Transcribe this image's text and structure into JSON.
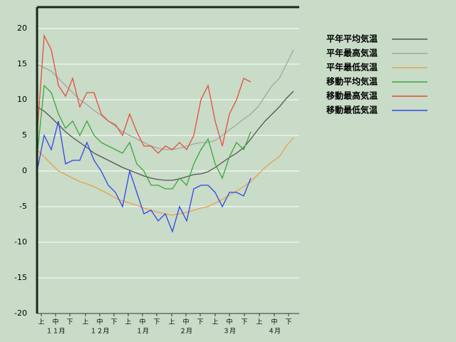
{
  "chart_data": {
    "type": "line",
    "x": [
      0,
      5,
      10,
      15,
      20,
      25,
      30,
      35,
      40,
      45,
      50,
      55,
      60,
      65,
      70,
      75,
      80,
      85,
      90,
      95,
      100,
      105,
      110,
      115,
      120,
      125,
      130,
      135,
      140,
      145,
      150,
      155,
      160,
      165,
      170,
      175,
      180
    ],
    "xlim": [
      0,
      184
    ],
    "xticks": [
      {
        "value": 3,
        "label": "上"
      },
      {
        "value": 13,
        "label": "中"
      },
      {
        "value": 23,
        "label": "下"
      },
      {
        "value": 34,
        "label": "上"
      },
      {
        "value": 44,
        "label": "中"
      },
      {
        "value": 54,
        "label": "下"
      },
      {
        "value": 64,
        "label": "上"
      },
      {
        "value": 74,
        "label": "中"
      },
      {
        "value": 84,
        "label": "下"
      },
      {
        "value": 94.5,
        "label": "上"
      },
      {
        "value": 104.5,
        "label": "中"
      },
      {
        "value": 114.5,
        "label": "下"
      },
      {
        "value": 125,
        "label": "上"
      },
      {
        "value": 135,
        "label": "中"
      },
      {
        "value": 145.5,
        "label": "下"
      },
      {
        "value": 156,
        "label": "上"
      },
      {
        "value": 166.5,
        "label": "中"
      },
      {
        "value": 176.5,
        "label": "下"
      }
    ],
    "month_labels": [
      {
        "value": 13,
        "label": "１１月"
      },
      {
        "value": 44,
        "label": "１２月"
      },
      {
        "value": 74,
        "label": "１月"
      },
      {
        "value": 104.5,
        "label": "２月"
      },
      {
        "value": 135,
        "label": "３月"
      },
      {
        "value": 166.5,
        "label": "４月"
      }
    ],
    "ylim": [
      -20,
      20
    ],
    "yticks": [
      -20,
      -15,
      -10,
      -5,
      0,
      5,
      10,
      15,
      20
    ],
    "grid": true,
    "series": [
      {
        "name": "平年平均気温",
        "color": "#555555",
        "values": [
          9,
          8.4,
          7.5,
          6.5,
          5.5,
          4.7,
          4,
          3.3,
          2.5,
          2,
          1.5,
          1,
          0.5,
          0.1,
          -0.3,
          -0.7,
          -1,
          -1.2,
          -1.3,
          -1.3,
          -1.1,
          -0.8,
          -0.5,
          -0.4,
          -0.1,
          0.5,
          1.2,
          1.9,
          2.5,
          3.3,
          4.5,
          5.8,
          7,
          8,
          9,
          10.2,
          11.2
        ]
      },
      {
        "name": "平年最高気温",
        "color": "#a0a8a0",
        "values": [
          15,
          14.5,
          14,
          13,
          12,
          11,
          10,
          9.3,
          8.5,
          7.8,
          7,
          6.3,
          5.5,
          5,
          4.5,
          4,
          3.5,
          3.2,
          3,
          3,
          3.2,
          3.5,
          3.8,
          4,
          4,
          4.3,
          5,
          5.8,
          6.5,
          7.3,
          8,
          9,
          10.5,
          12,
          13,
          15,
          17
        ]
      },
      {
        "name": "平年最低気温",
        "color": "#e8a050",
        "values": [
          3,
          2,
          1,
          0,
          -0.5,
          -1,
          -1.5,
          -1.8,
          -2.2,
          -2.7,
          -3.2,
          -3.8,
          -4.2,
          -4.5,
          -4.8,
          -5.2,
          -5.5,
          -5.8,
          -6,
          -6.2,
          -6,
          -5.8,
          -5.5,
          -5.2,
          -5,
          -4.5,
          -4,
          -3.4,
          -2.8,
          -2.2,
          -1.5,
          -0.5,
          0.5,
          1.3,
          2,
          3.5,
          4.7
        ]
      },
      {
        "name": "移動平均気温",
        "color": "#3aa83a",
        "values": [
          2,
          12,
          11,
          8,
          6,
          7,
          5,
          7,
          5,
          4,
          3.5,
          3,
          2.5,
          4,
          1,
          0,
          -2,
          -2,
          -2.5,
          -2.5,
          -1,
          -2,
          1,
          3,
          4.5,
          1,
          -1,
          2,
          4,
          3,
          5.5,
          null,
          null,
          null,
          null,
          null,
          null
        ]
      },
      {
        "name": "移動最高気温",
        "color": "#e84c3c",
        "values": [
          5,
          19,
          17,
          12,
          10.5,
          13,
          9,
          11,
          11,
          8,
          7,
          6.5,
          5,
          8,
          5.5,
          3.5,
          3.5,
          2.5,
          3.5,
          3,
          4,
          3,
          5,
          10,
          12,
          7,
          3.5,
          8,
          10,
          13,
          12.5,
          null,
          null,
          null,
          null,
          null,
          null
        ]
      },
      {
        "name": "移動最低気温",
        "color": "#3344e8",
        "values": [
          0,
          5,
          3,
          7,
          1,
          1.5,
          1.5,
          4,
          1.5,
          0,
          -2,
          -3,
          -5,
          0,
          -3,
          -6,
          -5.5,
          -7,
          -6,
          -8.5,
          -5,
          -7,
          -2.5,
          -2,
          -2,
          -3,
          -5,
          -3,
          -3,
          -3.5,
          -1,
          null,
          null,
          null,
          null,
          null,
          null
        ]
      }
    ]
  }
}
